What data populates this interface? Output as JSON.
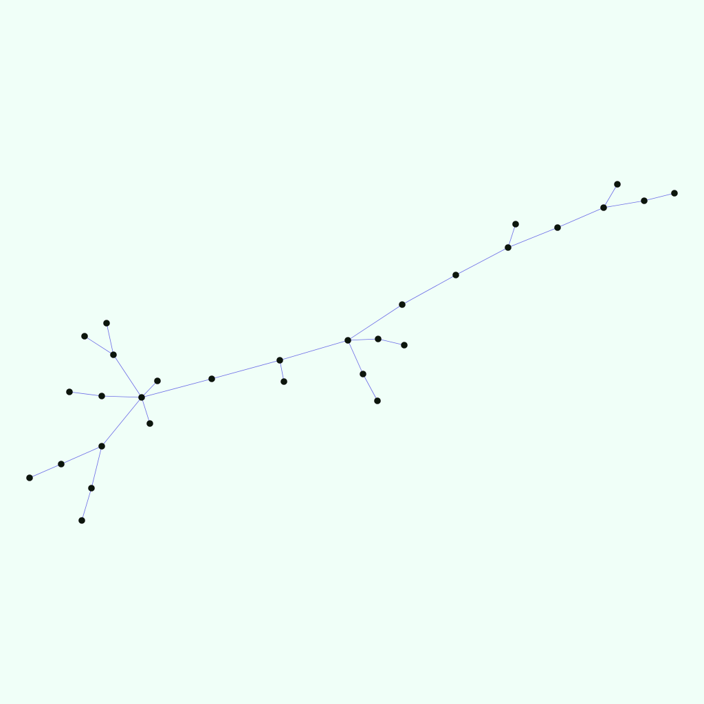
{
  "colors": {
    "background": "#f0fff8",
    "edge": "#6a6ae6",
    "edge_label": "#6a0a6a",
    "node_fill": "#0c160c",
    "node_label": "#c8c850"
  },
  "nodes": [
    {
      "id": "n1",
      "label": ""
    },
    {
      "id": "n2",
      "label": ""
    },
    {
      "id": "n3",
      "label": ""
    },
    {
      "id": "n4",
      "label": ""
    },
    {
      "id": "n5",
      "label": ""
    },
    {
      "id": "n6",
      "label": ""
    },
    {
      "id": "n7",
      "label": ""
    },
    {
      "id": "n8",
      "label": ""
    },
    {
      "id": "n9",
      "label": ""
    },
    {
      "id": "n10",
      "label": ""
    },
    {
      "id": "n11",
      "label": ""
    },
    {
      "id": "n12",
      "label": ""
    },
    {
      "id": "n13",
      "label": ""
    },
    {
      "id": "n14",
      "label": ""
    },
    {
      "id": "n15",
      "label": ""
    },
    {
      "id": "n16",
      "label": ""
    },
    {
      "id": "n17",
      "label": ""
    },
    {
      "id": "n18",
      "label": ""
    },
    {
      "id": "n19",
      "label": ""
    },
    {
      "id": "n20",
      "label": ""
    },
    {
      "id": "n21",
      "label": ""
    },
    {
      "id": "n22",
      "label": ""
    },
    {
      "id": "n23",
      "label": ""
    },
    {
      "id": "n24",
      "label": ""
    },
    {
      "id": "n25",
      "label": ""
    },
    {
      "id": "n26",
      "label": ""
    },
    {
      "id": "n27",
      "label": ""
    },
    {
      "id": "n28",
      "label": ""
    },
    {
      "id": "n29",
      "label": ""
    },
    {
      "id": "n30",
      "label": ""
    },
    {
      "id": "n31",
      "label": ""
    },
    {
      "id": "n32",
      "label": ""
    },
    {
      "id": "n33",
      "label": ""
    },
    {
      "id": "n34",
      "label": ""
    }
  ],
  "edges": [
    {
      "source": "n1",
      "target": "n2",
      "label": ""
    },
    {
      "source": "n1",
      "target": "n3",
      "label": ""
    },
    {
      "source": "n3",
      "target": "n4",
      "label": ""
    },
    {
      "source": "n3",
      "target": "n5",
      "label": ""
    },
    {
      "source": "n2",
      "target": "n6",
      "label": ""
    },
    {
      "source": "n6",
      "target": "n7",
      "label": ""
    },
    {
      "source": "n7",
      "target": "n8",
      "label": ""
    },
    {
      "source": "n7",
      "target": "n9",
      "label": ""
    },
    {
      "source": "n9",
      "target": "n10",
      "label": ""
    },
    {
      "source": "n10",
      "target": "n11",
      "label": ""
    },
    {
      "source": "n11",
      "target": "n12",
      "label": ""
    },
    {
      "source": "n11",
      "target": "n13",
      "label": ""
    },
    {
      "source": "n11",
      "target": "n14",
      "label": ""
    },
    {
      "source": "n14",
      "target": "n15",
      "label": ""
    },
    {
      "source": "n10",
      "target": "n16",
      "label": ""
    },
    {
      "source": "n16",
      "target": "n17",
      "label": ""
    },
    {
      "source": "n10",
      "target": "n18",
      "label": ""
    },
    {
      "source": "n18",
      "target": "n19",
      "label": ""
    },
    {
      "source": "n10",
      "target": "n20",
      "label": ""
    },
    {
      "source": "n20",
      "target": "n21",
      "label": ""
    },
    {
      "source": "n20",
      "target": "n22",
      "label": ""
    },
    {
      "source": "n22",
      "target": "n23",
      "label": ""
    },
    {
      "source": "n10",
      "target": "n24",
      "label": ""
    },
    {
      "source": "n24",
      "target": "n25",
      "label": ""
    },
    {
      "source": "n25",
      "target": "n26",
      "label": ""
    },
    {
      "source": "n26",
      "target": "n27",
      "label": ""
    },
    {
      "source": "n27",
      "target": "n28",
      "label": ""
    },
    {
      "source": "n27",
      "target": "n29",
      "label": ""
    },
    {
      "source": "n29",
      "target": "n30",
      "label": ""
    },
    {
      "source": "n30",
      "target": "n31",
      "label": ""
    },
    {
      "source": "n30",
      "target": "n32",
      "label": ""
    },
    {
      "source": "n32",
      "target": "n33",
      "label": ""
    },
    {
      "source": "n25",
      "target": "n34",
      "label": ""
    }
  ]
}
